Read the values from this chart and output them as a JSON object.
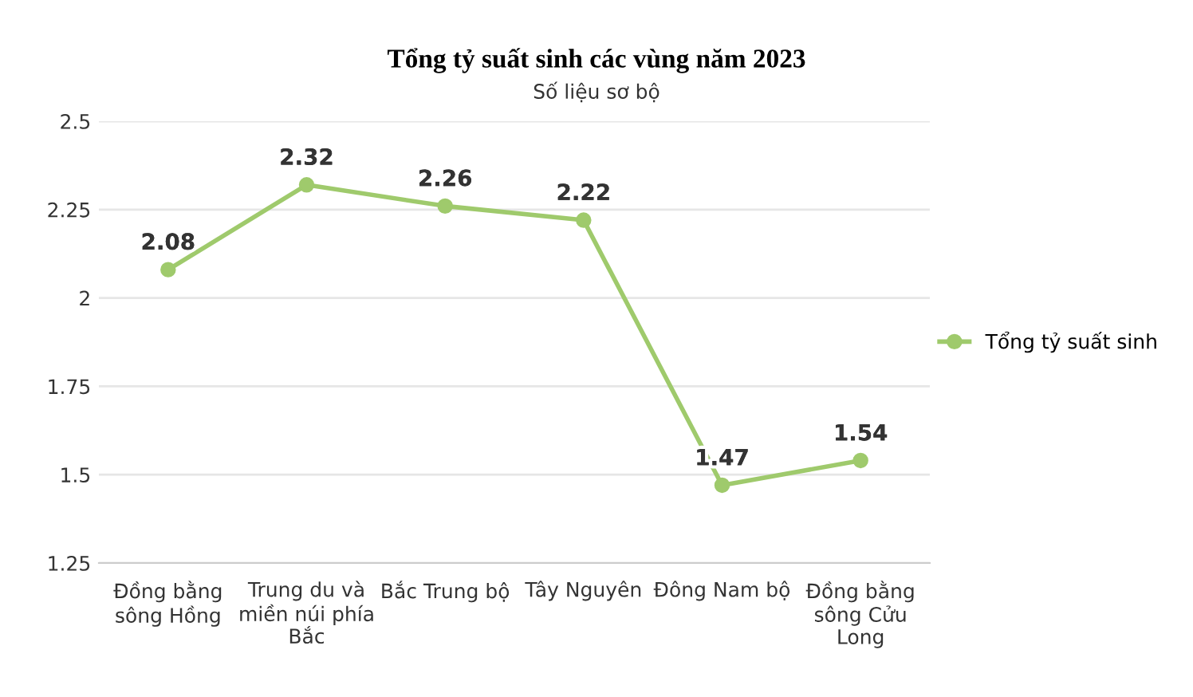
{
  "chart_data": {
    "type": "line",
    "title": "Tổng tỷ suất sinh các vùng năm 2023",
    "subtitle": "Số liệu sơ bộ",
    "categories": [
      "Đồng bằng\nsông Hồng",
      "Trung du và\nmiền núi phía\nBắc",
      "Bắc Trung bộ",
      "Tây Nguyên",
      "Đông Nam bộ",
      "Đồng bằng\nsông Cửu\nLong"
    ],
    "series": [
      {
        "name": "Tổng tỷ suất sinh",
        "color": "#9fca6c",
        "values": [
          2.08,
          2.32,
          2.26,
          2.22,
          1.47,
          1.54
        ]
      }
    ],
    "ylim": [
      1.25,
      2.5
    ],
    "yticks": [
      1.25,
      1.5,
      1.75,
      2,
      2.25,
      2.5
    ],
    "grid": "y",
    "legend": "right",
    "marker": "circle",
    "data_labels": true
  }
}
